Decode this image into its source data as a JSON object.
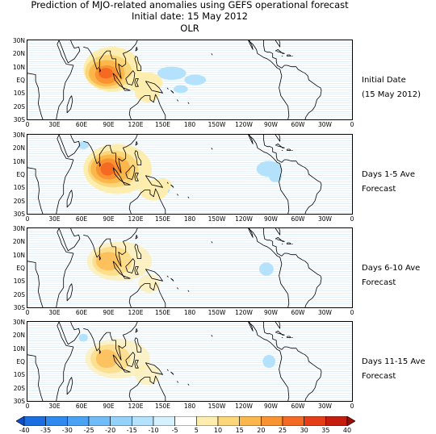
{
  "header": {
    "line1": "Prediction of MJO-related anomalies using GEFS operational forecast",
    "line2": "Initial date: 15 May 2012",
    "line3": "OLR"
  },
  "axes": {
    "lat_labels": [
      "30N",
      "20N",
      "10N",
      "EQ",
      "10S",
      "20S",
      "30S"
    ],
    "lon_labels": [
      "0",
      "30E",
      "60E",
      "90E",
      "120E",
      "150E",
      "180",
      "150W",
      "120W",
      "90W",
      "60W",
      "30W",
      "0"
    ]
  },
  "panels": [
    {
      "label_line1": "Initial Date",
      "label_line2": "(15 May 2012)",
      "intensity": 1.0
    },
    {
      "label_line1": "Days  1-5 Ave",
      "label_line2": "Forecast",
      "intensity": 1.0
    },
    {
      "label_line1": "Days  6-10 Ave",
      "label_line2": "Forecast",
      "intensity": 0.75
    },
    {
      "label_line1": "Days  11-15 Ave",
      "label_line2": "Forecast",
      "intensity": 0.7
    }
  ],
  "colorbar": {
    "ticks": [
      "-40",
      "-35",
      "-30",
      "-25",
      "-20",
      "-15",
      "-10",
      "-5",
      "5",
      "10",
      "15",
      "20",
      "25",
      "30",
      "35",
      "40"
    ],
    "colors": [
      "#0b4fcf",
      "#1a6ee0",
      "#2f8af0",
      "#4aa2f5",
      "#6fbcf8",
      "#94d2fb",
      "#b4e2fc",
      "#d5f1fd",
      "#ffffff",
      "#fdeeb0",
      "#fcd77a",
      "#fbb74c",
      "#f99332",
      "#f46a22",
      "#e43d17",
      "#c51d0e",
      "#9c0d0a"
    ]
  },
  "colors": {
    "positive_ramp": [
      "#fdeeb0",
      "#fcd77a",
      "#fbb74c",
      "#f99332",
      "#f46a22",
      "#e43d17"
    ],
    "negative": "#b4e2fc",
    "grid": "#cfe6f3",
    "coast": "#000000"
  }
}
